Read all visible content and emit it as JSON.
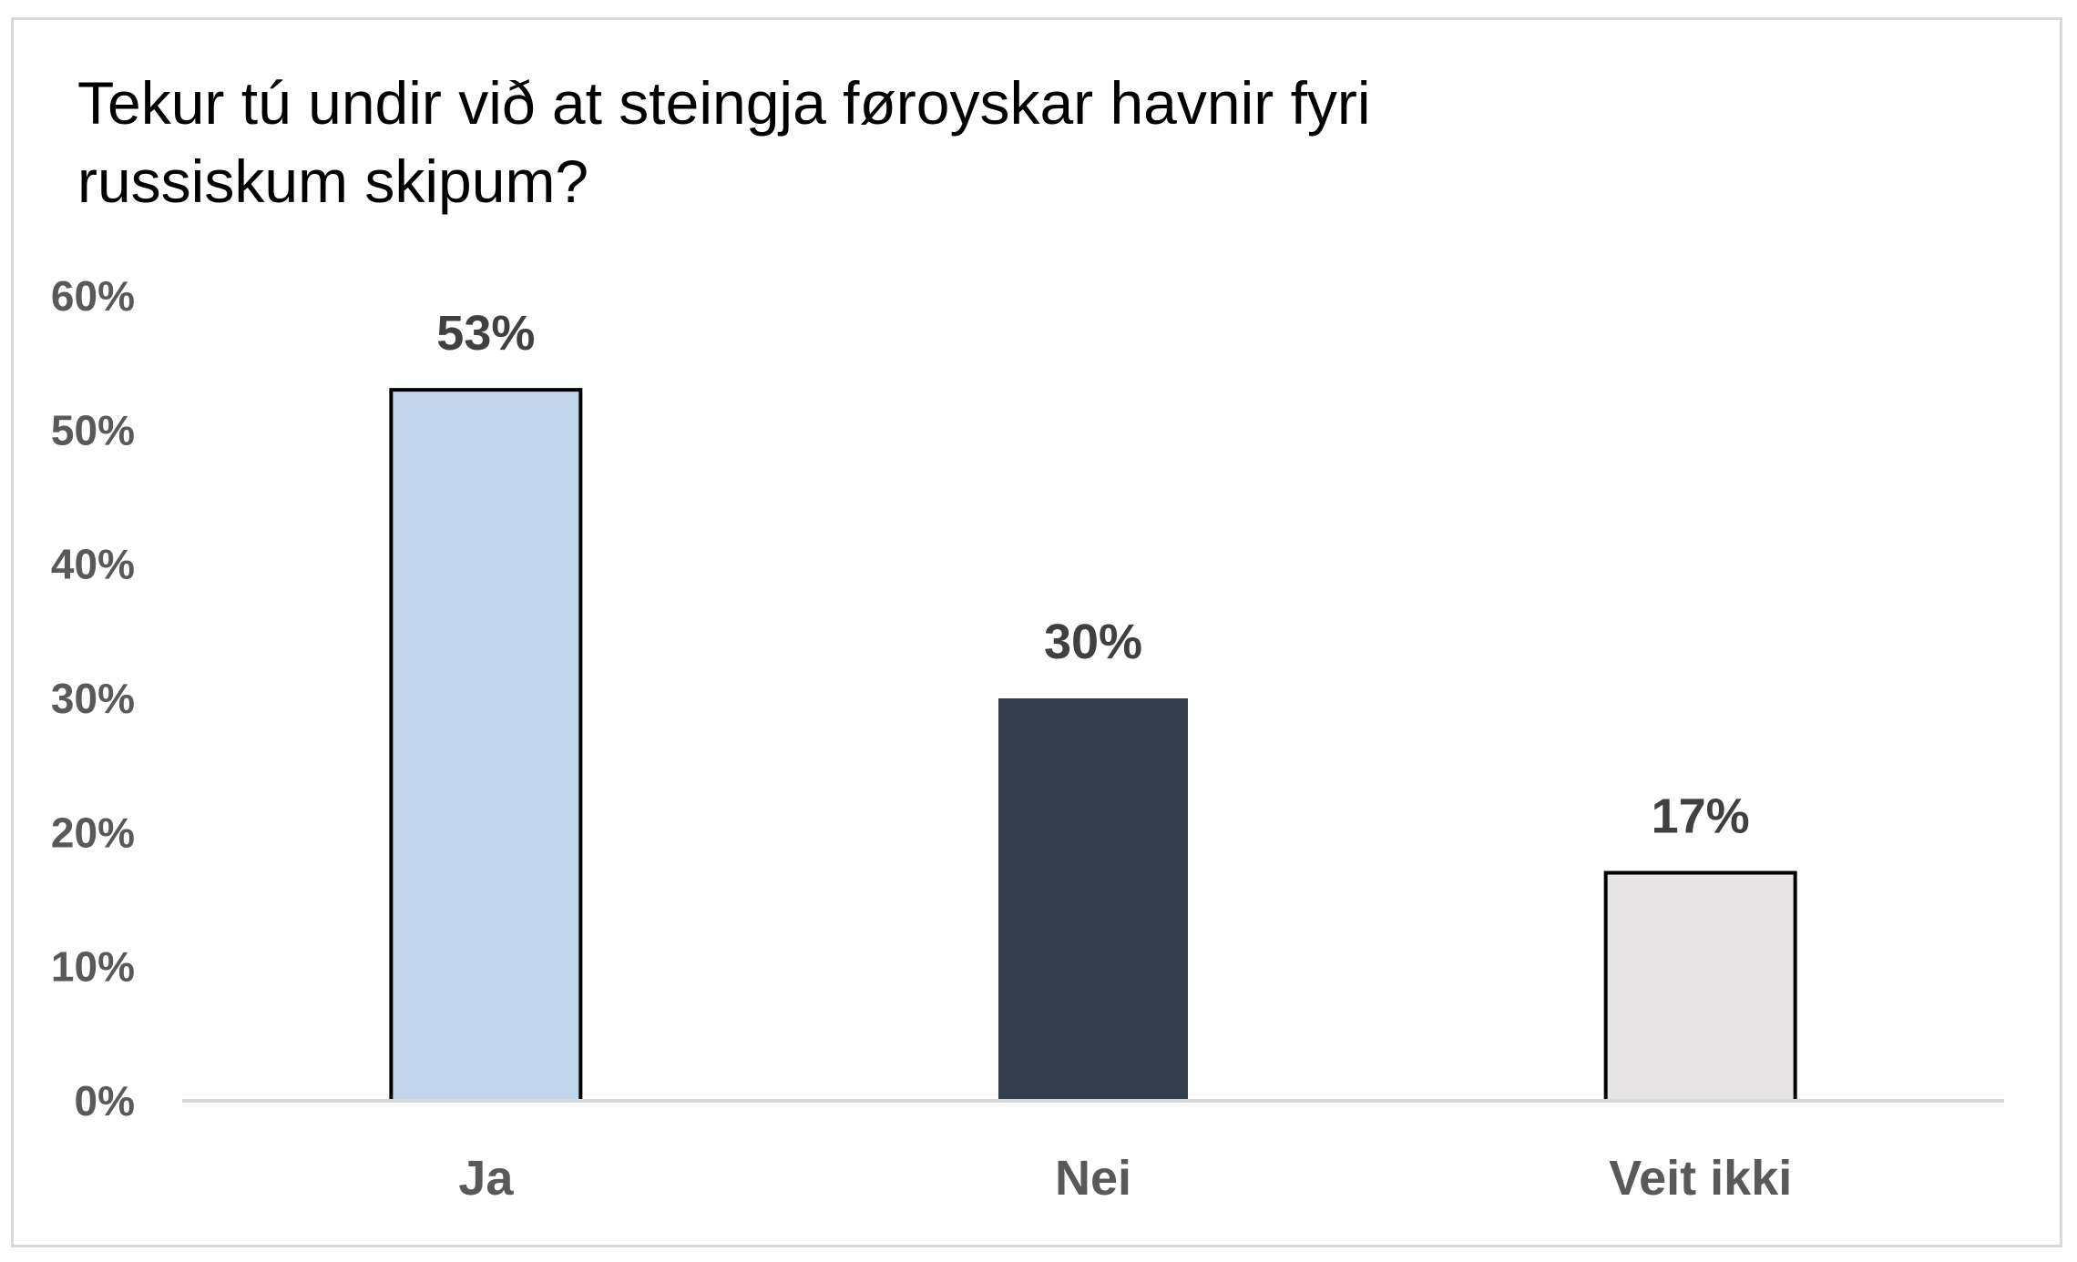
{
  "chart_data": {
    "type": "bar",
    "title": "Tekur tú undir við at steingja føroyskar havnir fyri russiskum skipum?",
    "categories": [
      "Ja",
      "Nei",
      "Veit ikki"
    ],
    "values": [
      53,
      30,
      17
    ],
    "data_labels": [
      "53%",
      "30%",
      "17%"
    ],
    "ylim": [
      0,
      60
    ],
    "yticks": [
      0,
      10,
      20,
      30,
      40,
      50,
      60
    ],
    "ytick_labels": [
      "0%",
      "10%",
      "20%",
      "30%",
      "40%",
      "50%",
      "60%"
    ],
    "xlabel": "",
    "ylabel": "",
    "grid": false,
    "legend": "none",
    "colors": [
      "#c2d6eb",
      "#353e4c",
      "#e6e4e4"
    ],
    "bar_outline": [
      "#000000",
      "none",
      "#000000"
    ]
  }
}
